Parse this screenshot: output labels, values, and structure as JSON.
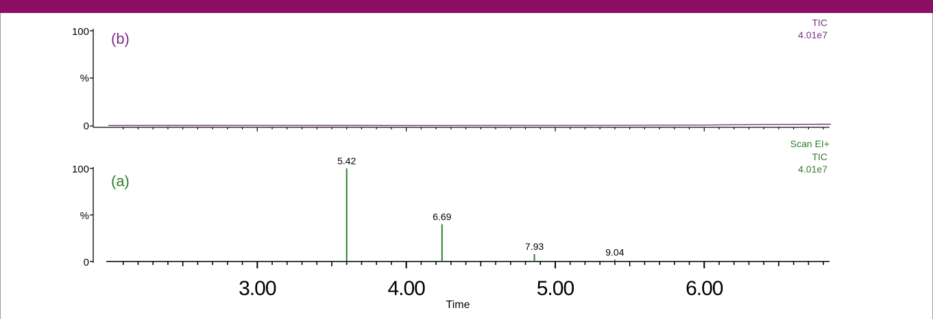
{
  "colors": {
    "banner": "#8b0f63",
    "trace_b": "#7d2f86",
    "trace_a": "#2e7d2e",
    "axis": "#000000"
  },
  "chart_data": [
    {
      "type": "line",
      "panel_label": "(b)",
      "right_labels": [
        "TIC",
        "4.01e7"
      ],
      "y_ticks": [
        "100",
        "%",
        "0"
      ],
      "ylim": [
        0,
        100
      ],
      "xlim": [
        2.0,
        6.85
      ],
      "series": [
        {
          "x": [
            2.0,
            3.0,
            4.0,
            5.0,
            6.0,
            6.4,
            6.85
          ],
          "values": [
            0.5,
            0.6,
            0.5,
            0.6,
            0.9,
            1.6,
            1.8
          ]
        }
      ]
    },
    {
      "type": "line",
      "panel_label": "(a)",
      "right_labels": [
        "Scan EI+",
        "TIC",
        "4.01e7"
      ],
      "y_ticks": [
        "100",
        "%",
        "0"
      ],
      "ylim": [
        0,
        100
      ],
      "xlim": [
        2.0,
        6.85
      ],
      "x_ticks": [
        "3.00",
        "4.00",
        "5.00",
        "6.00"
      ],
      "xlabel": "Time",
      "peaks": [
        {
          "x": 3.6,
          "height": 100,
          "label": "5.42"
        },
        {
          "x": 4.24,
          "height": 40,
          "label": "6.69"
        },
        {
          "x": 4.86,
          "height": 8,
          "label": "7.93"
        },
        {
          "x": 5.4,
          "height": 2,
          "label": "9.04"
        }
      ]
    }
  ]
}
